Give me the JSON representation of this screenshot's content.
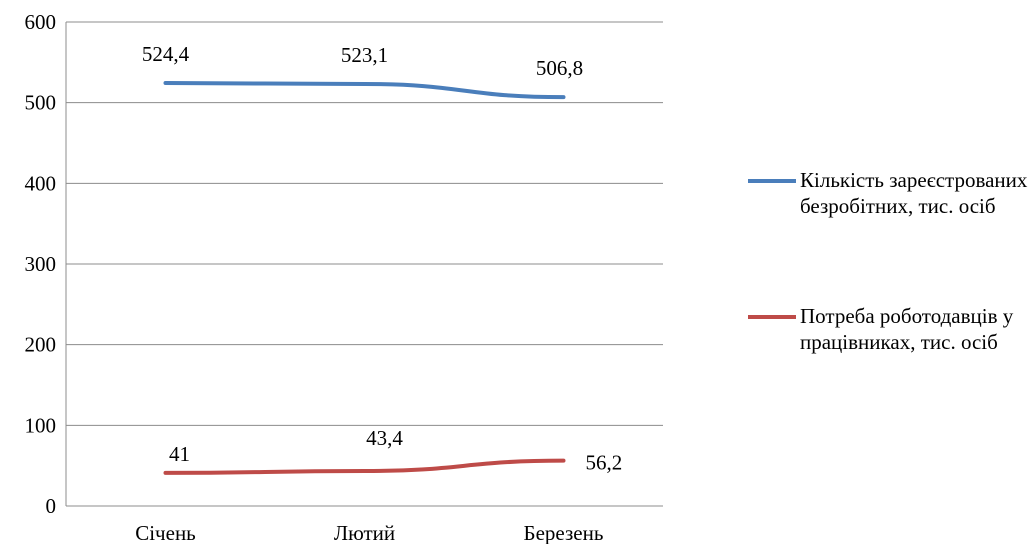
{
  "chart_data": {
    "type": "line",
    "categories": [
      "Січень",
      "Лютий",
      "Березень"
    ],
    "ylim": [
      0,
      600
    ],
    "yticks": [
      0,
      100,
      200,
      300,
      400,
      500,
      600
    ],
    "grid": true,
    "legend_position": "right",
    "series": [
      {
        "name": "Кількість зареєстрованих безробітних, тис. осіб",
        "values": [
          524.4,
          523.1,
          506.8
        ],
        "labels": [
          "524,4",
          "523,1",
          "506,8"
        ],
        "color": "#4a7ebb"
      },
      {
        "name": "Потреба роботодавців у працівниках, тис. осіб",
        "values": [
          41,
          43.4,
          56.2
        ],
        "labels": [
          "41",
          "43,4",
          "56,2"
        ],
        "color": "#be4b48"
      }
    ]
  }
}
